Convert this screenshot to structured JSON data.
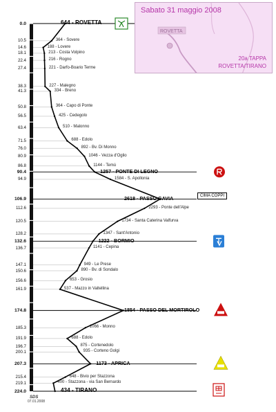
{
  "inset": {
    "date": "Sabato 31 maggio 2008",
    "map_label": "ROVETTA",
    "stage": "20a TAPPA",
    "route": "ROVETTA/TIRANO"
  },
  "badge": "CIMA COPPI",
  "logo": "SDS",
  "logo_date": "07.01.2008",
  "profile": [
    {
      "km": "0.0",
      "alt": 644,
      "name": "ROVETTA",
      "type": "endpoint"
    },
    {
      "km": "10.5",
      "alt": 364,
      "name": "Sovere"
    },
    {
      "km": "14.6",
      "alt": 188,
      "name": "Lovere"
    },
    {
      "km": "18.1",
      "alt": 213,
      "name": "Costa Volpino"
    },
    {
      "km": "22.4",
      "alt": 216,
      "name": "Rogno"
    },
    {
      "km": "27.4",
      "alt": 221,
      "name": "Darfo-Boario Terme"
    },
    {
      "km": "38.3",
      "alt": 227,
      "name": "Malegno"
    },
    {
      "km": "41.3",
      "alt": 334,
      "name": "Breno"
    },
    {
      "km": "50.8",
      "alt": 364,
      "name": "Capo di Ponte"
    },
    {
      "km": "56.5",
      "alt": 425,
      "name": "Cedegolo"
    },
    {
      "km": "63.4",
      "alt": 510,
      "name": "Malonno"
    },
    {
      "km": "71.5",
      "alt": 688,
      "name": "Edolo"
    },
    {
      "km": "76.0",
      "alt": 892,
      "name": "Bv. Di Monno"
    },
    {
      "km": "80.9",
      "alt": 1046,
      "name": "Vezza d'Oglio"
    },
    {
      "km": "86.8",
      "alt": 1144,
      "name": "Temù"
    },
    {
      "km": "90.4",
      "alt": 1257,
      "name": "PONTE DI LEGNO",
      "type": "major"
    },
    {
      "km": "94.9",
      "alt": 1584,
      "name": "S. Apollonia"
    },
    {
      "km": "106.9",
      "alt": 2618,
      "name": "PASSO GAVIA",
      "type": "major"
    },
    {
      "km": "112.6",
      "alt": 2293,
      "name": "Ponte dell'Alpe"
    },
    {
      "km": "120.5",
      "alt": 1734,
      "name": "Santa Caterina Valfurva"
    },
    {
      "km": "128.2",
      "alt": 1347,
      "name": "Sant'Antonio"
    },
    {
      "km": "132.6",
      "alt": 1222,
      "name": "BORMIO",
      "type": "major"
    },
    {
      "km": "136.7",
      "alt": 1141,
      "name": "Cepina"
    },
    {
      "km": "147.1",
      "alt": 949,
      "name": "Le Prese"
    },
    {
      "km": "150.6",
      "alt": 890,
      "name": "Bv. di Sondalo"
    },
    {
      "km": "156.6",
      "alt": 653,
      "name": "Grosio"
    },
    {
      "km": "161.9",
      "alt": 537,
      "name": "Mazzo in Valtellina"
    },
    {
      "km": "174.8",
      "alt": 1854,
      "name": "PASSO DEL MORTIROLO",
      "type": "major"
    },
    {
      "km": "185.3",
      "alt": 1066,
      "name": "Monno"
    },
    {
      "km": "191.9",
      "alt": 688,
      "name": "Edolo"
    },
    {
      "km": "196.7",
      "alt": 875,
      "name": "Cortenedolo"
    },
    {
      "km": "200.1",
      "alt": 935,
      "name": "Corteno Golgi"
    },
    {
      "km": "207.3",
      "alt": 1173,
      "name": "APRICA",
      "type": "major"
    },
    {
      "km": "215.4",
      "alt": 648,
      "name": "Bivio per Stazzona"
    },
    {
      "km": "219.1",
      "alt": 400,
      "name": "Stazzona - via San Bernardo"
    },
    {
      "km": "224.0",
      "alt": 434,
      "name": "TIRANO",
      "type": "endpoint"
    }
  ],
  "bold_km": [
    "0.0",
    "90.4",
    "106.9",
    "132.6",
    "174.8",
    "207.3",
    "224.0"
  ],
  "colors": {
    "profile": "#000000",
    "mortirolo": "#cc1111",
    "aprica": "#e8e000",
    "bormio": "#2b7fd6",
    "start": "#2c8a2c",
    "finish": "#cc1111"
  }
}
